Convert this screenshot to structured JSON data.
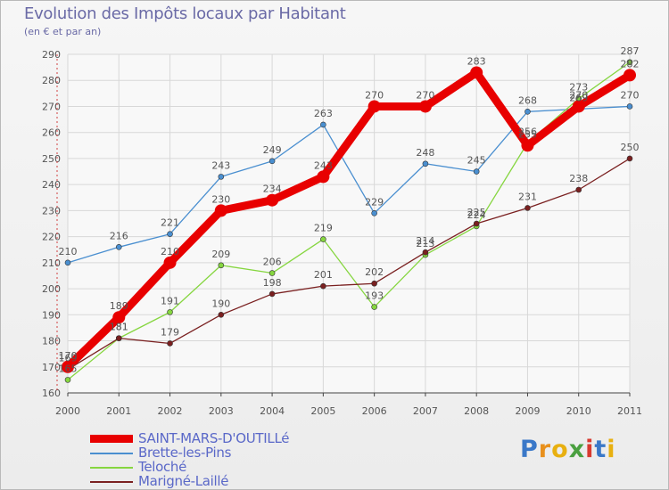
{
  "title": "Evolution des Impôts locaux par Habitant",
  "subtitle": "(en € et par an)",
  "brand": {
    "letters": [
      "P",
      "r",
      "o",
      "x",
      "i",
      "t",
      "i"
    ],
    "colors": [
      "#3a78c8",
      "#e8901c",
      "#e8b010",
      "#4aa040",
      "#d83a30",
      "#3a78c8",
      "#e8b010"
    ]
  },
  "chart_data": {
    "type": "line",
    "title": "Evolution des Impôts locaux par Habitant",
    "subtitle": "(en € et par an)",
    "xlabel": "",
    "ylabel": "",
    "x": [
      "2000",
      "2001",
      "2002",
      "2003",
      "2004",
      "2005",
      "2006",
      "2007",
      "2008",
      "2009",
      "2010",
      "2011"
    ],
    "ylim": [
      160,
      290
    ],
    "yticks": [
      "160",
      "170",
      "180",
      "190",
      "200",
      "210",
      "220",
      "230",
      "240",
      "250",
      "260",
      "270",
      "280",
      "290"
    ],
    "grid": true,
    "legend_position": "bottom-left",
    "series": [
      {
        "name": "SAINT-MARS-D'OUTILLé",
        "color": "#e80000",
        "width": "thick",
        "values": [
          170,
          189,
          210,
          230,
          234,
          243,
          270,
          270,
          283,
          255,
          270,
          282
        ],
        "labels": [
          "170",
          "189",
          "210",
          "230",
          "234",
          "243",
          "270",
          "270",
          "283",
          "255",
          "270",
          "282"
        ]
      },
      {
        "name": "Brette-les-Pins",
        "color": "#4a8fd0",
        "width": "thin",
        "values": [
          210,
          216,
          221,
          243,
          249,
          263,
          229,
          248,
          245,
          268,
          269,
          270
        ],
        "labels": [
          "210",
          "216",
          "221",
          "243",
          "249",
          "263",
          "229",
          "248",
          "245",
          "268",
          "269",
          "270"
        ]
      },
      {
        "name": "Teloché",
        "color": "#86d640",
        "width": "thin",
        "values": [
          165,
          181,
          191,
          209,
          206,
          219,
          193,
          213,
          224,
          256,
          273,
          287
        ],
        "labels": [
          "165",
          "181",
          "191",
          "209",
          "206",
          "219",
          "193",
          "213",
          "224",
          "256",
          "273",
          "287"
        ]
      },
      {
        "name": "Marigné-Laillé",
        "color": "#7a2020",
        "width": "thin",
        "values": [
          169,
          181,
          179,
          190,
          198,
          201,
          202,
          214,
          225,
          231,
          238,
          250
        ],
        "labels": [
          "169",
          "181",
          "179",
          "190",
          "198",
          "201",
          "202",
          "214",
          "225",
          "231",
          "238",
          "250"
        ]
      }
    ]
  }
}
